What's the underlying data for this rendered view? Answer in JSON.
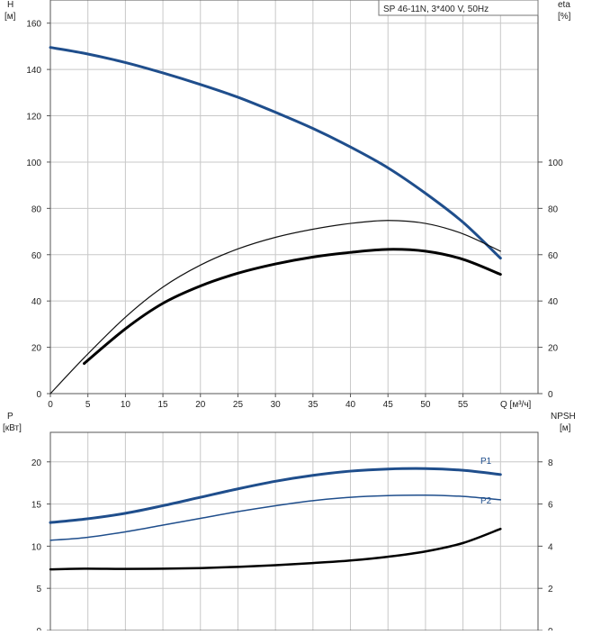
{
  "legend_label": "SP 46-11N, 3*400 V, 50Hz",
  "chart_data": [
    {
      "type": "line",
      "xlabel": "Q [м³/ч]",
      "xlim": [
        0,
        65
      ],
      "x_ticks": [
        0,
        5,
        10,
        15,
        20,
        25,
        30,
        35,
        40,
        45,
        50,
        55
      ],
      "left_axis": {
        "label_top": "H",
        "label_unit": "[м]",
        "ylim": [
          0,
          170
        ],
        "ticks": [
          0,
          20,
          40,
          60,
          80,
          100,
          120,
          140,
          160
        ]
      },
      "right_axis": {
        "label_top": "eta",
        "label_unit": "[%]",
        "ylim": [
          0,
          170
        ],
        "ticks": [
          0,
          20,
          40,
          60,
          80,
          100
        ]
      },
      "grid": true,
      "series": [
        {
          "axis": "left",
          "color": "#1f4e8c",
          "width": 3,
          "x": [
            0,
            4.5,
            10,
            15,
            20,
            25,
            30,
            35,
            40,
            45,
            50,
            55,
            60
          ],
          "y": [
            149.5,
            147,
            143,
            138.5,
            133.5,
            128,
            121.5,
            114.5,
            106.5,
            97.5,
            86.5,
            74,
            58.5
          ]
        },
        {
          "axis": "right",
          "color": "#111111",
          "width": 1.2,
          "x": [
            0,
            4.5,
            10,
            15,
            20,
            25,
            30,
            35,
            40,
            45,
            50,
            55,
            60
          ],
          "y": [
            0,
            15.5,
            33,
            46,
            55.5,
            62.5,
            67.5,
            71,
            73.5,
            74.8,
            73.5,
            69,
            61.5
          ]
        },
        {
          "axis": "right",
          "color": "#000000",
          "width": 3,
          "x": [
            4.5,
            10,
            15,
            20,
            25,
            30,
            35,
            40,
            45,
            50,
            55,
            60
          ],
          "y": [
            13,
            28,
            39,
            46.5,
            52,
            56,
            59,
            61,
            62.3,
            61.5,
            58,
            51.5
          ]
        }
      ]
    },
    {
      "type": "line",
      "xlim": [
        0,
        65
      ],
      "left_axis": {
        "label_top": "P",
        "label_unit": "[кВт]",
        "ylim": [
          0,
          23.5
        ],
        "ticks": [
          0,
          5,
          10,
          15,
          20
        ]
      },
      "right_axis": {
        "label_top": "NPSH",
        "label_unit": "[м]",
        "ylim": [
          0,
          9.4
        ],
        "ticks": [
          0,
          2,
          4,
          6,
          8
        ]
      },
      "grid": true,
      "series": [
        {
          "name": "P1",
          "axis": "left",
          "color": "#1f4e8c",
          "width": 3,
          "x": [
            0,
            4.5,
            10,
            15,
            20,
            25,
            30,
            35,
            40,
            45,
            50,
            55,
            60
          ],
          "y": [
            12.8,
            13.2,
            13.9,
            14.8,
            15.8,
            16.8,
            17.7,
            18.4,
            18.9,
            19.15,
            19.2,
            19.0,
            18.5
          ]
        },
        {
          "name": "P2",
          "axis": "left",
          "color": "#1f4e8c",
          "width": 1.5,
          "x": [
            0,
            4.5,
            10,
            15,
            20,
            25,
            30,
            35,
            40,
            45,
            50,
            55,
            60
          ],
          "y": [
            10.7,
            11.0,
            11.7,
            12.5,
            13.3,
            14.1,
            14.8,
            15.4,
            15.8,
            16.0,
            16.05,
            15.9,
            15.5
          ]
        },
        {
          "axis": "right",
          "color": "#000000",
          "width": 2.5,
          "x": [
            0,
            4.5,
            10,
            15,
            20,
            25,
            30,
            35,
            40,
            45,
            50,
            55,
            60
          ],
          "y": [
            2.9,
            2.93,
            2.92,
            2.93,
            2.96,
            3.02,
            3.1,
            3.2,
            3.32,
            3.5,
            3.75,
            4.15,
            4.82
          ]
        }
      ]
    }
  ]
}
